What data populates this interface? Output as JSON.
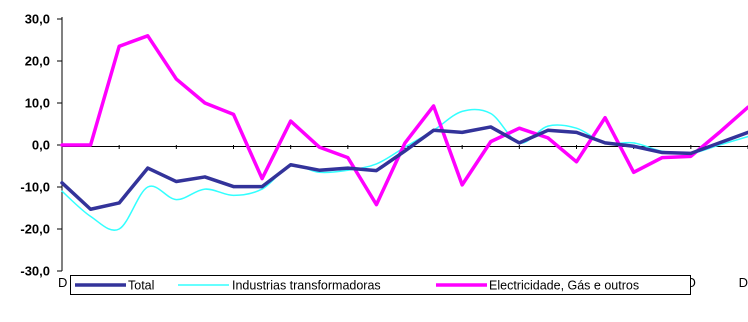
{
  "chart_data": {
    "type": "line",
    "title": "",
    "xlabel": "",
    "ylabel": "",
    "ylim": [
      -30,
      30
    ],
    "yticks": [
      "30,0",
      "20,0",
      "10,0",
      "0,0",
      "-10,0",
      "-20,0",
      "-30,0"
    ],
    "ytick_values": [
      30,
      20,
      10,
      0,
      -10,
      -20,
      -30
    ],
    "x_tick_labels": [
      "D",
      "F",
      "A",
      "J",
      "A",
      "O",
      "D",
      "F",
      "A",
      "J",
      "A",
      "O",
      "D"
    ],
    "n_points": 25,
    "grid": false,
    "legend_position": "bottom",
    "series": [
      {
        "name": "Total",
        "color": "#33339a",
        "values": [
          -9.0,
          -15.3,
          -13.8,
          -5.5,
          -8.7,
          -7.6,
          -9.9,
          -9.9,
          -4.7,
          -6.0,
          -5.5,
          -6.1,
          -1.4,
          3.5,
          3.0,
          4.3,
          0.5,
          3.5,
          3.0,
          0.5,
          -0.3,
          -1.8,
          -2.0,
          0.5,
          3.0
        ],
        "smooth": false
      },
      {
        "name": "Industrias transformadoras",
        "color": "#33ffff",
        "values": [
          -11.0,
          -17.0,
          -20.0,
          -10.0,
          -13.0,
          -10.5,
          -12.0,
          -10.5,
          -5.0,
          -6.5,
          -6.0,
          -4.5,
          -0.5,
          3.5,
          8.0,
          7.5,
          0.5,
          4.5,
          4.0,
          0.5,
          0.5,
          -1.5,
          -2.0,
          0.0,
          2.0
        ],
        "smooth": true
      },
      {
        "name": "Electricidade, Gás e outros",
        "color": "#ff00ff",
        "values": [
          0.0,
          0.0,
          23.5,
          26.0,
          15.7,
          10.0,
          7.3,
          -8.0,
          5.7,
          -0.5,
          -3.0,
          -14.2,
          0.5,
          9.3,
          -9.5,
          0.8,
          4.0,
          1.7,
          -4.0,
          6.5,
          -6.5,
          -3.0,
          -2.7,
          3.0,
          9.0
        ],
        "smooth": false
      }
    ]
  }
}
